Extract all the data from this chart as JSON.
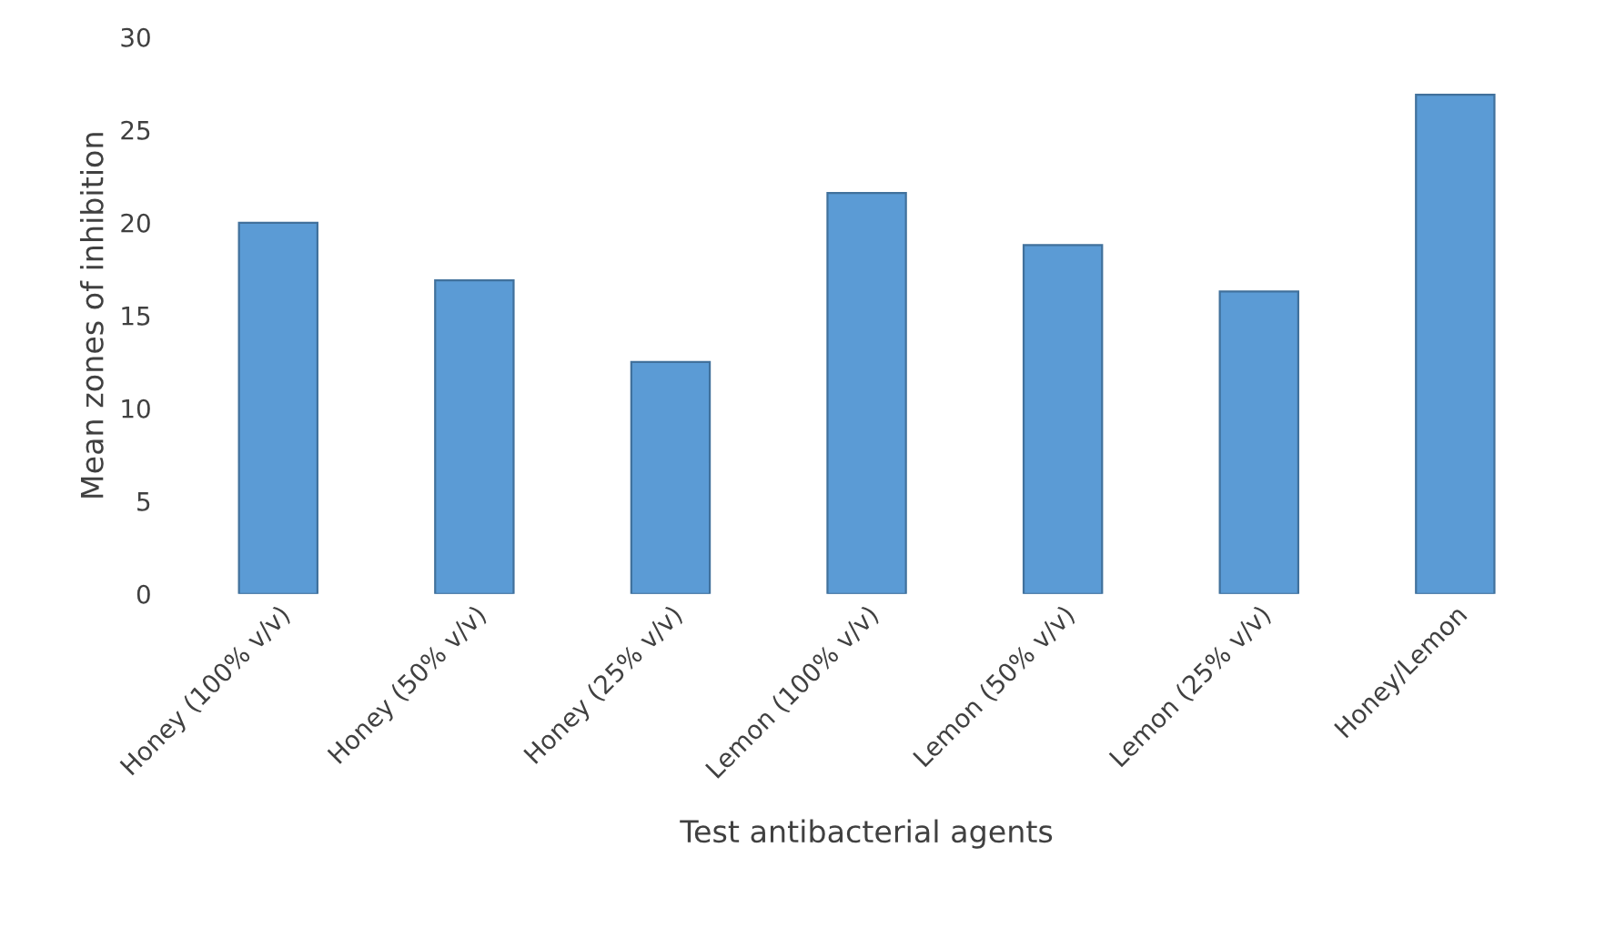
{
  "chart_data": {
    "type": "bar",
    "xlabel": "Test antibacterial agents",
    "ylabel": "Mean zones of inhibition",
    "categories": [
      "Honey (100% v/v)",
      "Honey (50% v/v)",
      "Honey (25% v/v)",
      "Lemon (100% v/v)",
      "Lemon (50% v/v)",
      "Lemon (25% v/v)",
      "Honey/Lemon"
    ],
    "values": [
      20,
      16.9,
      12.5,
      21.6,
      18.8,
      16.3,
      26.9
    ],
    "color": "#5b9bd5",
    "ylim": [
      0,
      30
    ],
    "yticks": [
      0,
      5,
      10,
      15,
      20,
      25,
      30
    ],
    "grid": false,
    "legend": false
  }
}
